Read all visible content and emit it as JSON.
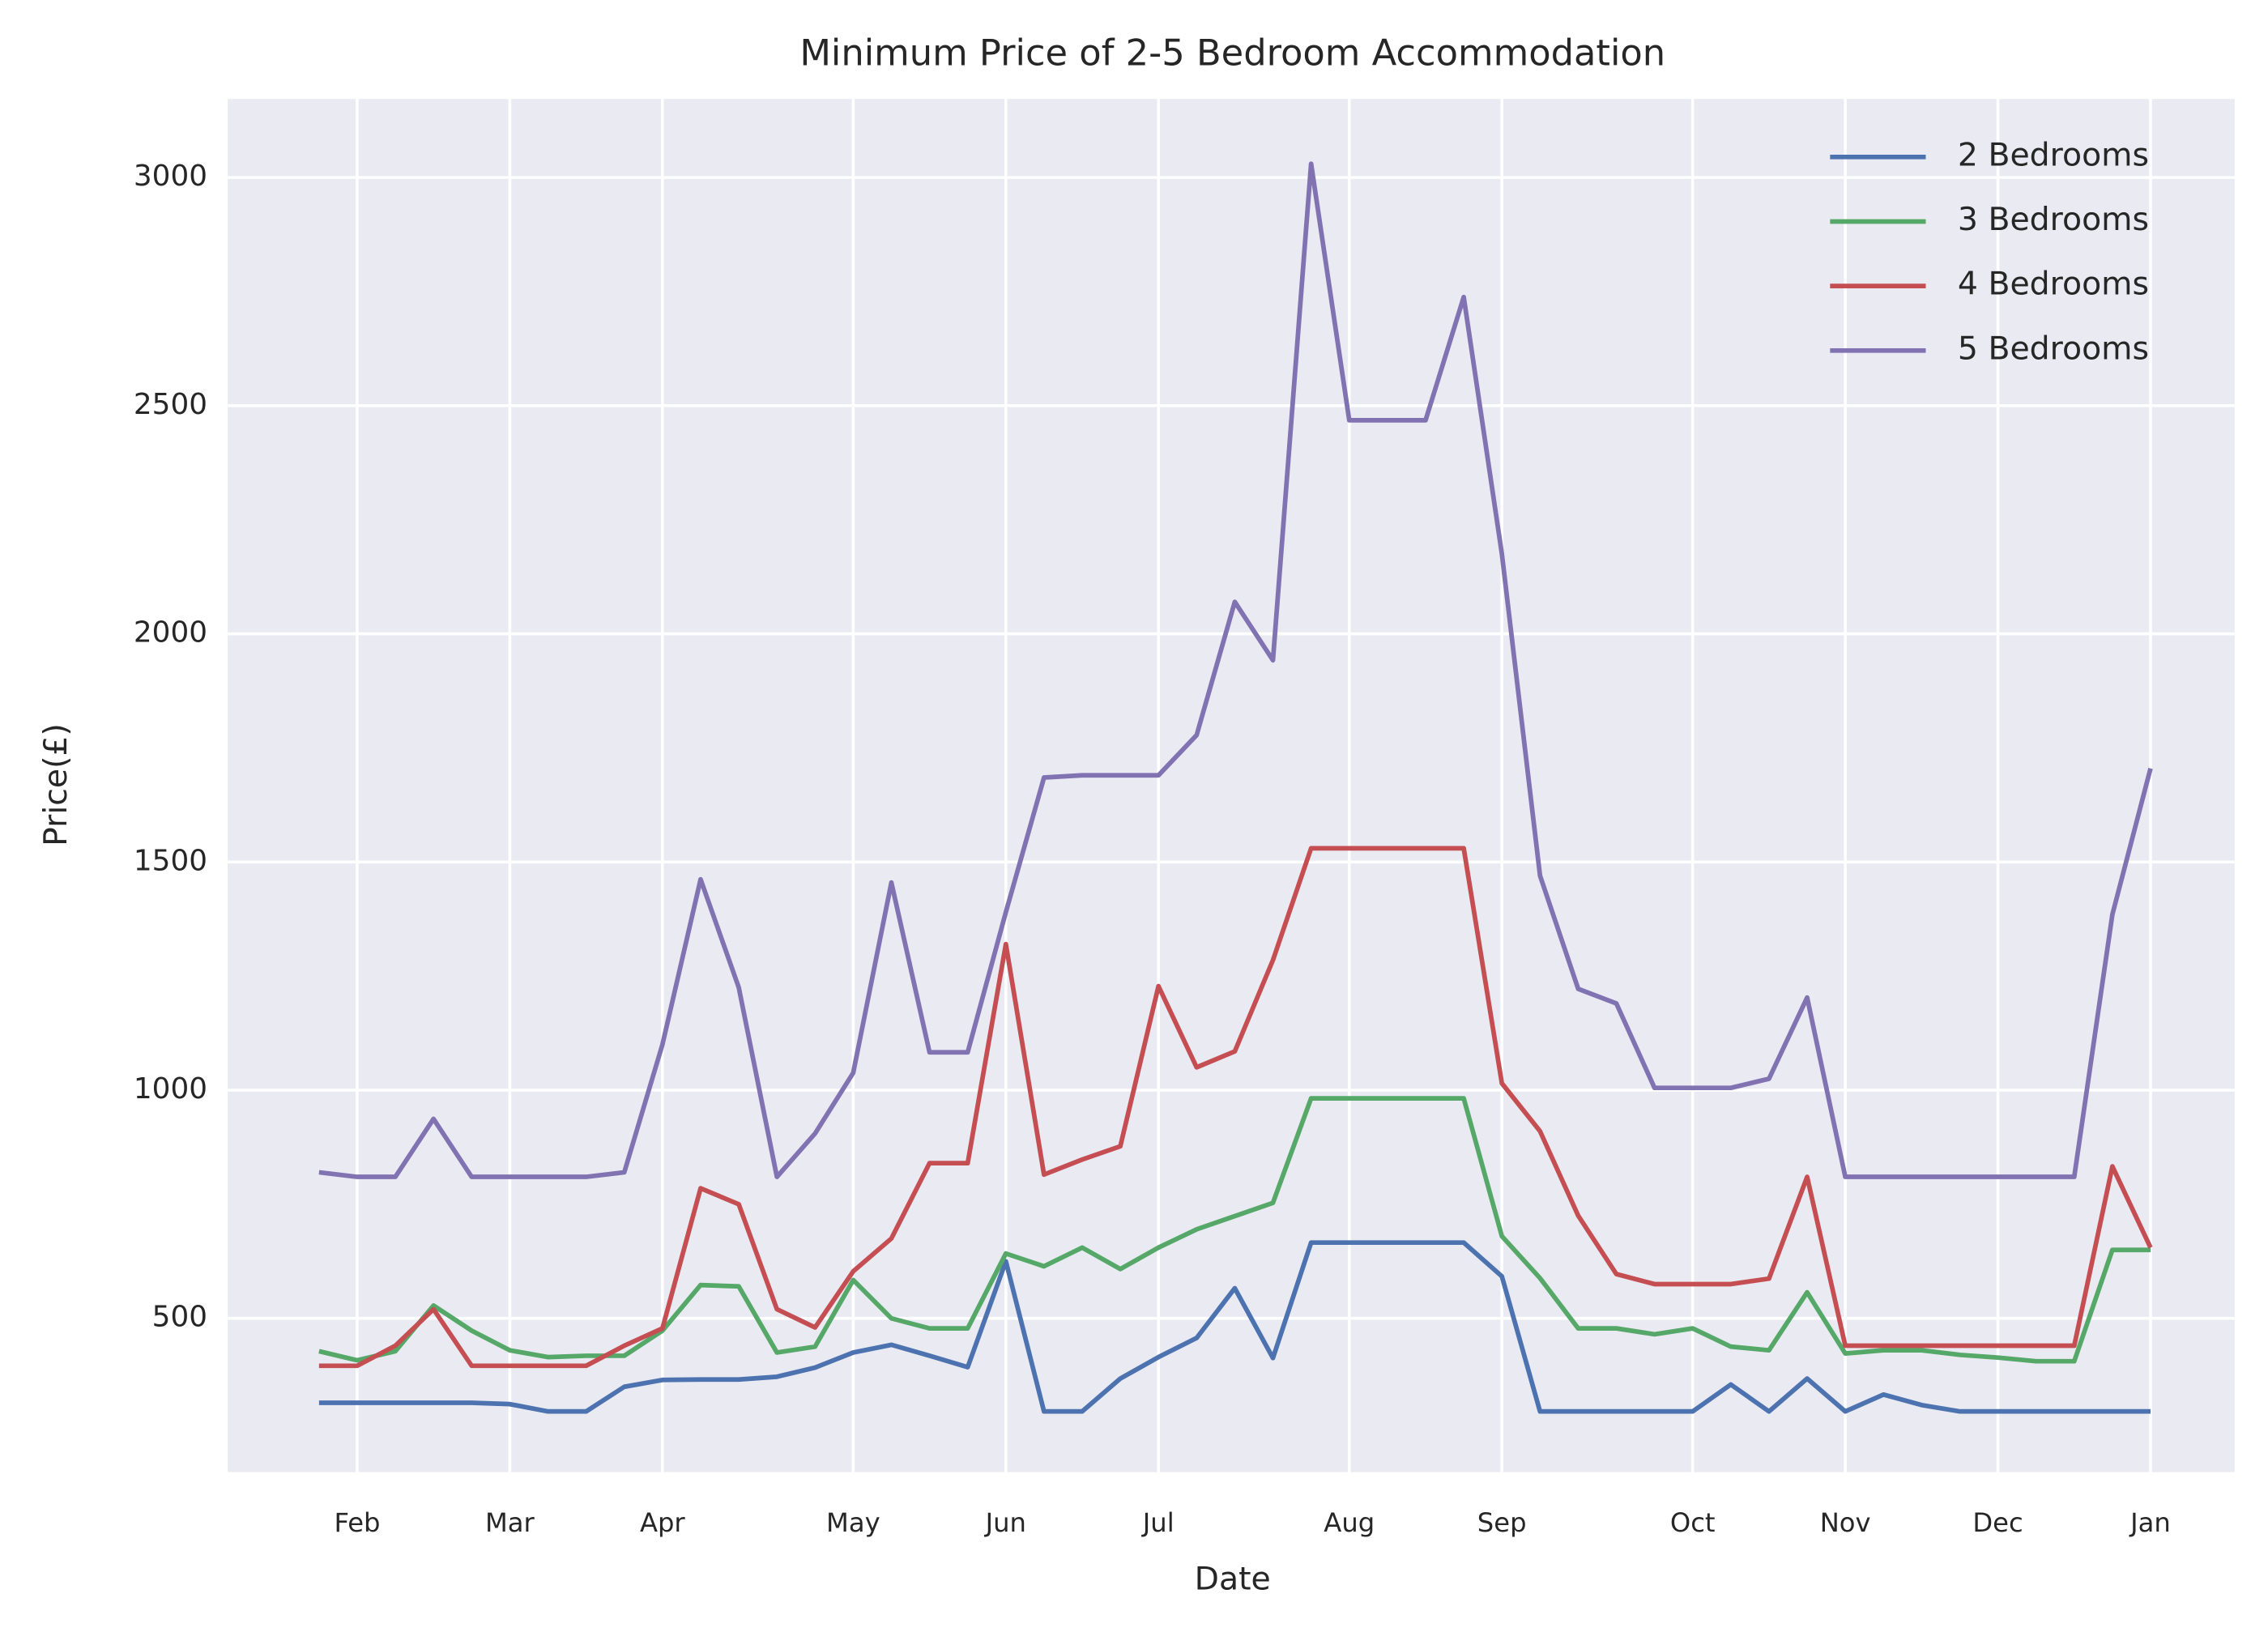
{
  "chart_data": {
    "type": "line",
    "title": "Minimum Price of 2-5 Bedroom Accommodation",
    "xlabel": "Date",
    "ylabel": "Price(£)",
    "categories": [
      null,
      "Feb",
      null,
      null,
      null,
      "Mar",
      null,
      null,
      null,
      "Apr",
      null,
      null,
      null,
      null,
      "May",
      null,
      null,
      null,
      "Jun",
      null,
      null,
      null,
      "Jul",
      null,
      null,
      null,
      null,
      "Aug",
      null,
      null,
      null,
      "Sep",
      null,
      null,
      null,
      null,
      "Oct",
      null,
      null,
      null,
      "Nov",
      null,
      null,
      null,
      "Dec",
      null,
      null,
      null,
      "Jan"
    ],
    "ylim": [
      163,
      3172
    ],
    "yticks": [
      500,
      1000,
      1500,
      2000,
      2500,
      3000
    ],
    "grid": true,
    "legend": "upper right",
    "series": [
      {
        "name": "2 Bedrooms",
        "color": "#4c72b0",
        "values": [
          315,
          315,
          315,
          315,
          315,
          312,
          296,
          296,
          350,
          365,
          366,
          366,
          372,
          392,
          425,
          442,
          418,
          393,
          625,
          296,
          296,
          368,
          415,
          457,
          566,
          413,
          666,
          666,
          666,
          666,
          666,
          592,
          296,
          296,
          296,
          296,
          296,
          355,
          296,
          368,
          296,
          333,
          310,
          296,
          296,
          296,
          296,
          296,
          296
        ]
      },
      {
        "name": "3 Bedrooms",
        "color": "#55a868",
        "values": [
          428,
          408,
          428,
          528,
          473,
          430,
          415,
          418,
          418,
          473,
          573,
          570,
          425,
          438,
          584,
          500,
          478,
          478,
          642,
          614,
          655,
          608,
          655,
          695,
          724,
          753,
          982,
          982,
          982,
          982,
          982,
          680,
          588,
          478,
          478,
          465,
          478,
          438,
          430,
          557,
          423,
          430,
          430,
          420,
          414,
          406,
          406,
          650,
          650
        ]
      },
      {
        "name": "4 Bedrooms",
        "color": "#c44e52",
        "values": [
          396,
          396,
          440,
          520,
          396,
          396,
          396,
          396,
          440,
          478,
          785,
          750,
          520,
          480,
          603,
          675,
          840,
          840,
          1320,
          815,
          848,
          877,
          1228,
          1050,
          1085,
          1285,
          1530,
          1530,
          1530,
          1530,
          1530,
          1015,
          910,
          725,
          597,
          575,
          575,
          575,
          587,
          810,
          440,
          440,
          440,
          440,
          440,
          440,
          440,
          833,
          655
        ]
      },
      {
        "name": "5 Bedrooms",
        "color": "#8172b2",
        "values": [
          820,
          810,
          810,
          937,
          810,
          810,
          810,
          810,
          820,
          1100,
          1462,
          1225,
          810,
          905,
          1038,
          1455,
          1083,
          1083,
          1390,
          1685,
          1690,
          1690,
          1690,
          1778,
          2070,
          1942,
          3030,
          2468,
          2468,
          2468,
          2738,
          2175,
          1470,
          1222,
          1190,
          1005,
          1005,
          1005,
          1025,
          1203,
          810,
          810,
          810,
          810,
          810,
          810,
          810,
          1385,
          1705
        ]
      }
    ]
  }
}
